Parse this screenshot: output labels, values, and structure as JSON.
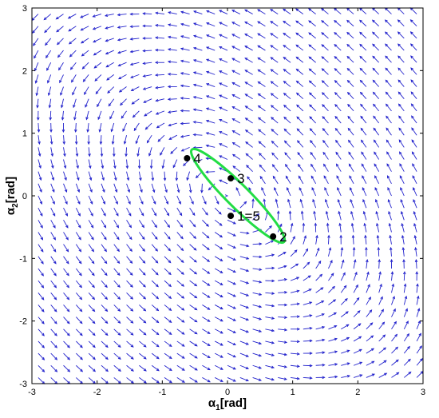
{
  "chart_data": {
    "type": "quiver",
    "title": "",
    "xlabel": {
      "main": "α",
      "sub": "1",
      "unit": "[rad]"
    },
    "ylabel": {
      "main": "α",
      "sub": "2",
      "unit": "[rad]"
    },
    "xlim": [
      -3,
      3
    ],
    "ylim": [
      -3,
      3
    ],
    "xticks": [
      -3,
      -2,
      -1,
      0,
      1,
      2,
      3
    ],
    "yticks": [
      -3,
      -2,
      -1,
      0,
      1,
      2,
      3
    ],
    "grid": false,
    "field_color": "#2222cc",
    "trajectory_color": "#22dd44",
    "trajectory": {
      "center": [
        0.16,
        0.0
      ],
      "semi_major": 1.0,
      "semi_minor": 0.18,
      "angle_deg": -45
    },
    "points": [
      {
        "label": "1=5",
        "x": 0.05,
        "y": -0.32
      },
      {
        "label": "2",
        "x": 0.7,
        "y": -0.65
      },
      {
        "label": "3",
        "x": 0.05,
        "y": 0.28
      },
      {
        "label": "4",
        "x": -0.62,
        "y": 0.6
      }
    ]
  }
}
